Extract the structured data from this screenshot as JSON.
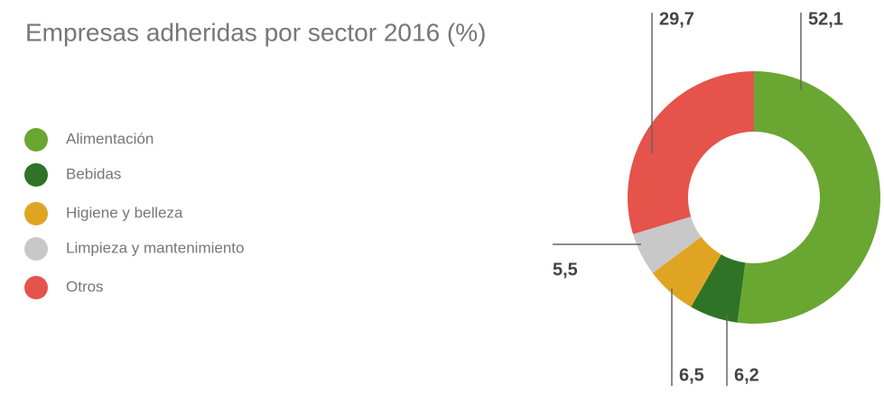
{
  "chart_data": {
    "type": "donut",
    "title": "Empresas adheridas por sector 2016 (%)",
    "categories": [
      "Alimentación",
      "Bebidas",
      "Higiene y belleza",
      "Limpieza y mantenimiento",
      "Otros"
    ],
    "values": [
      52.1,
      6.2,
      6.5,
      5.5,
      29.7
    ],
    "value_labels": [
      "52,1",
      "6,2",
      "6,5",
      "5,5",
      "29,7"
    ],
    "colors": [
      "#6aa632",
      "#2e7326",
      "#e0a423",
      "#c8c8c8",
      "#e5534b"
    ],
    "legend": "left"
  }
}
